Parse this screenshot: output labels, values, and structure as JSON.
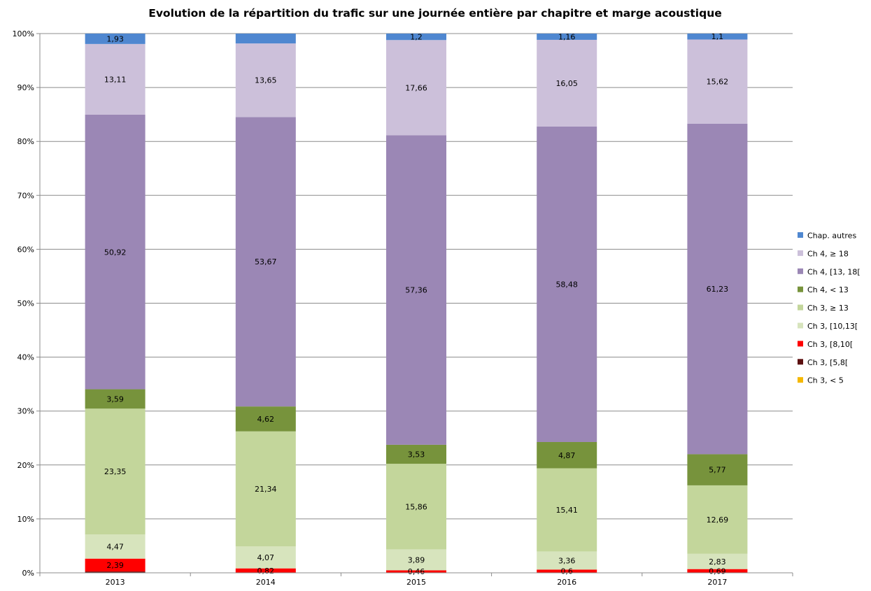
{
  "chart_data": {
    "type": "bar",
    "stacked": true,
    "percent_axis": true,
    "title": "Evolution de la répartition du trafic sur une journée entière par chapitre et marge acoustique",
    "xlabel": "",
    "ylabel": "",
    "ylim": [
      0,
      100
    ],
    "y_ticks": [
      "0%",
      "10%",
      "20%",
      "30%",
      "40%",
      "50%",
      "60%",
      "70%",
      "80%",
      "90%",
      "100%"
    ],
    "grid": true,
    "legend_position": "right",
    "categories": [
      "2013",
      "2014",
      "2015",
      "2016",
      "2017"
    ],
    "series": [
      {
        "name": "Ch 3, < 5",
        "color": "#f5b800",
        "legend_text_color": "#f79646",
        "values": [
          0,
          0,
          0,
          0,
          0
        ],
        "labels": [
          "",
          "",
          "",
          "",
          ""
        ]
      },
      {
        "name": "Ch 3, [5,8[",
        "color": "#5c1010",
        "legend_text_color": "#000000",
        "values": [
          0.24,
          0,
          0,
          0,
          0
        ],
        "labels": [
          "",
          "",
          "",
          "",
          ""
        ]
      },
      {
        "name": "Ch 3, [8,10[",
        "color": "#ff0000",
        "legend_text_color": "#000000",
        "values": [
          2.39,
          0.82,
          0.46,
          0.6,
          0.69
        ],
        "labels": [
          "2,39",
          "0,82",
          "0,46",
          "0,6",
          "0,69"
        ]
      },
      {
        "name": "Ch 3, [10,13[",
        "color": "#d7e4bd",
        "legend_text_color": "#000000",
        "values": [
          4.47,
          4.07,
          3.89,
          3.36,
          2.83
        ],
        "labels": [
          "4,47",
          "4,07",
          "3,89",
          "3,36",
          "2,83"
        ]
      },
      {
        "name": "Ch 3, ≥ 13",
        "color": "#c3d69b",
        "legend_text_color": "#000000",
        "values": [
          23.35,
          21.34,
          15.86,
          15.41,
          12.69
        ],
        "labels": [
          "23,35",
          "21,34",
          "15,86",
          "15,41",
          "12,69"
        ]
      },
      {
        "name": "Ch 4, < 13",
        "color": "#77933c",
        "legend_text_color": "#000000",
        "values": [
          3.59,
          4.62,
          3.53,
          4.87,
          5.77
        ],
        "labels": [
          "3,59",
          "4,62",
          "3,53",
          "4,87",
          "5,77"
        ]
      },
      {
        "name": "Ch 4, [13, 18[",
        "color": "#9b87b5",
        "legend_text_color": "#000000",
        "values": [
          50.92,
          53.67,
          57.36,
          58.48,
          61.23
        ],
        "labels": [
          "50,92",
          "53,67",
          "57,36",
          "58,48",
          "61,23"
        ]
      },
      {
        "name": "Ch 4, ≥ 18",
        "color": "#ccc0da",
        "legend_text_color": "#000000",
        "values": [
          13.11,
          13.65,
          17.66,
          16.05,
          15.62
        ],
        "labels": [
          "13,11",
          "13,65",
          "17,66",
          "16,05",
          "15,62"
        ]
      },
      {
        "name": "Chap. autres",
        "color": "#4f87d0",
        "legend_text_color": "#000000",
        "values": [
          1.93,
          1.83,
          1.2,
          1.16,
          1.1
        ],
        "labels": [
          "1,93",
          "",
          "1,2",
          "1,16",
          "1,1"
        ]
      }
    ]
  }
}
